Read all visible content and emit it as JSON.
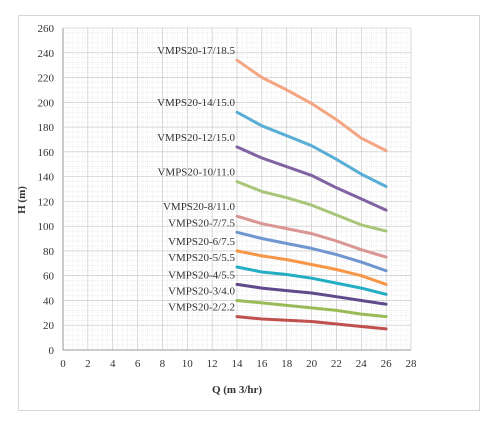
{
  "chart_data": {
    "type": "line",
    "xlabel": "Q (m 3/hr)",
    "ylabel": "H (m)",
    "xlim": [
      0,
      28
    ],
    "ylim": [
      0,
      260
    ],
    "xticks": [
      "0",
      "2",
      "4",
      "6",
      "8",
      "10",
      "12",
      "14",
      "16",
      "18",
      "20",
      "22",
      "24",
      "26",
      "28"
    ],
    "yticks": [
      "0",
      "20",
      "40",
      "60",
      "80",
      "100",
      "120",
      "140",
      "160",
      "180",
      "200",
      "220",
      "240",
      "260"
    ],
    "grid": true,
    "x": [
      14,
      16,
      18,
      20,
      22,
      24,
      26
    ],
    "series": [
      {
        "name": "VMPS20-17/18.5",
        "color": "#f4a582",
        "values": [
          234,
          220,
          210,
          199,
          186,
          171,
          161
        ]
      },
      {
        "name": "VMPS20-14/15.0",
        "color": "#5aaed6",
        "values": [
          192,
          181,
          173,
          165,
          154,
          142,
          132
        ]
      },
      {
        "name": "VMPS20-12/15.0",
        "color": "#8064a2",
        "values": [
          164,
          155,
          148,
          141,
          131,
          122,
          113
        ]
      },
      {
        "name": "VMPS20-10/11.0",
        "color": "#a9c57a",
        "values": [
          136,
          128,
          123,
          117,
          109,
          101,
          96
        ]
      },
      {
        "name": "VMPS20-8/11.0",
        "color": "#d99694",
        "values": [
          108,
          102,
          98,
          94,
          88,
          81,
          75
        ]
      },
      {
        "name": "VMPS20-7/7.5",
        "color": "#6f96cf",
        "values": [
          95,
          90,
          86,
          82,
          77,
          71,
          64
        ]
      },
      {
        "name": "VMPS20-6/7.5",
        "color": "#f79646",
        "values": [
          80,
          76,
          73,
          69,
          65,
          60,
          53
        ]
      },
      {
        "name": "VMPS20-5/5.5",
        "color": "#23aec3",
        "values": [
          67,
          63,
          61,
          58,
          54,
          50,
          45
        ]
      },
      {
        "name": "VMPS20-4/5.5",
        "color": "#604a8b",
        "values": [
          53,
          50,
          48,
          46,
          43,
          40,
          37
        ]
      },
      {
        "name": "VMPS20-3/4.0",
        "color": "#9bbb59",
        "values": [
          40,
          38,
          36,
          34,
          32,
          29,
          27
        ]
      },
      {
        "name": "VMPS20-2/2.2",
        "color": "#c0504d",
        "values": [
          27,
          25,
          24,
          23,
          21,
          19,
          17
        ]
      }
    ]
  }
}
